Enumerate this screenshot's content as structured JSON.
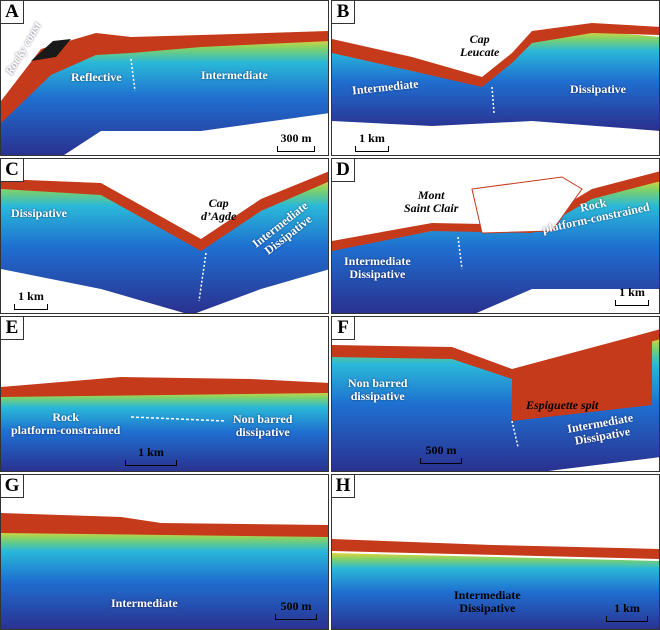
{
  "colors": {
    "land": "#c43a1a",
    "beach": "#e8d23a",
    "shallow": "#2ab8d8",
    "mid": "#1f6fd0",
    "deep": "#2a2f8e",
    "rock": "#1a1a1a"
  },
  "panels": [
    {
      "id": "A",
      "labels": {
        "rocky": "Rocky coast",
        "reflective": "Reflective",
        "intermediate": "Intermediate"
      },
      "scale": "300 m"
    },
    {
      "id": "B",
      "labels": {
        "cap": "Cap\nLeucate",
        "intermediate": "Intermediate",
        "dissipative": "Dissipative"
      },
      "scale": "1 km"
    },
    {
      "id": "C",
      "labels": {
        "dissipative": "Dissipative",
        "cap": "Cap\nd’Agde",
        "intdis": "Intermediate\nDissipative"
      },
      "scale": "1 km"
    },
    {
      "id": "D",
      "labels": {
        "mont": "Mont\nSaint Clair",
        "rock": "Rock\nplatform-constrained",
        "intdis": "Intermediate\nDissipative"
      },
      "scale": "1 km"
    },
    {
      "id": "E",
      "labels": {
        "rock": "Rock\nplatform-constrained",
        "nonbarred": "Non barred\ndissipative"
      },
      "scale": "1 km"
    },
    {
      "id": "F",
      "labels": {
        "nonbarred": "Non barred\ndissipative",
        "spit": "Espiguette spit",
        "intdis": "Intermediate\nDissipative"
      },
      "scale": "500 m"
    },
    {
      "id": "G",
      "labels": {
        "intermediate": "Intermediate"
      },
      "scale": "500 m"
    },
    {
      "id": "H",
      "labels": {
        "intdis": "Intermediate\nDissipative"
      },
      "scale": "1 km"
    }
  ]
}
